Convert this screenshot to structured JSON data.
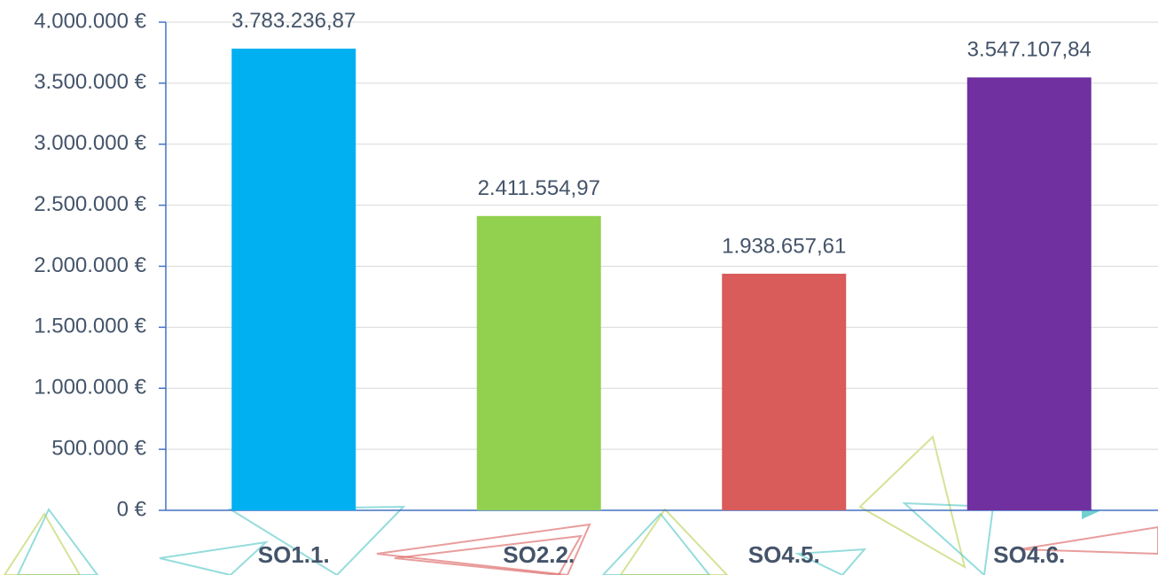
{
  "chart_data": {
    "type": "bar",
    "categories": [
      "SO1.1.",
      "SO2.2.",
      "SO4.5.",
      "SO4.6."
    ],
    "values": [
      3783236.87,
      2411554.97,
      1938657.61,
      3547107.84
    ],
    "value_labels": [
      "3.783.236,87",
      "2.411.554,97",
      "1.938.657,61",
      "3.547.107,84"
    ],
    "colors": [
      "#00b0f0",
      "#92d050",
      "#d95b5a",
      "#7030a0"
    ],
    "ylim": [
      0,
      4000000
    ],
    "yticks": [
      {
        "value": 0,
        "label": "0 €"
      },
      {
        "value": 500000,
        "label": "500.000 €"
      },
      {
        "value": 1000000,
        "label": "1.000.000 €"
      },
      {
        "value": 1500000,
        "label": "1.500.000 €"
      },
      {
        "value": 2000000,
        "label": "2.000.000 €"
      },
      {
        "value": 2500000,
        "label": "2.500.000 €"
      },
      {
        "value": 3000000,
        "label": "3.000.000 €"
      },
      {
        "value": 3500000,
        "label": "3.500.000 €"
      },
      {
        "value": 4000000,
        "label": "4.000.000 €"
      }
    ],
    "grid": true
  }
}
